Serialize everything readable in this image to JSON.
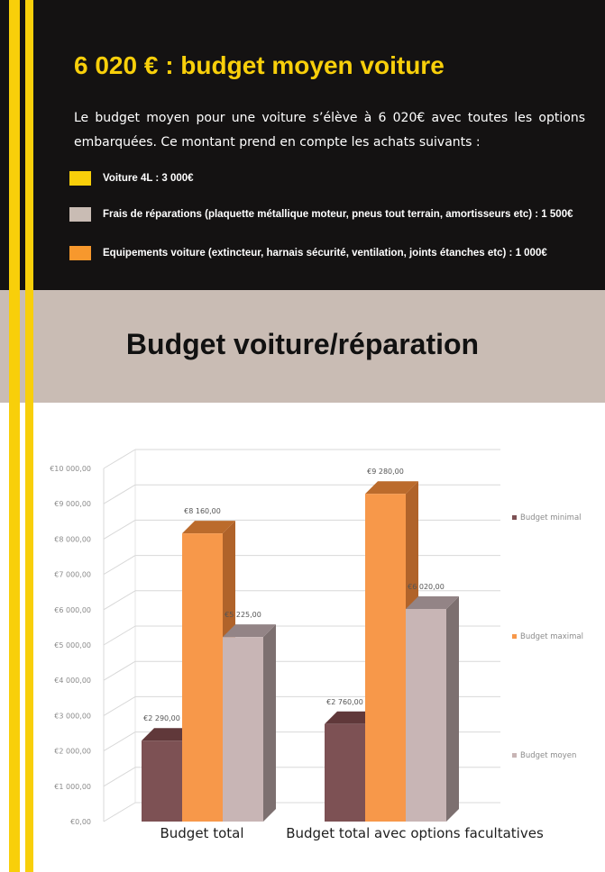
{
  "header": {
    "title": "6 020 € : budget moyen voiture",
    "intro": "Le budget moyen pour une voiture s’élève à 6 020€ avec toutes les options embarquées. Ce montant prend en compte les achats suivants :",
    "items": [
      {
        "label": "Voiture 4L : 3 000€",
        "color": "#f8cf0a"
      },
      {
        "label": "Frais de réparations (plaquette métallique moteur, pneus tout terrain, amortisseurs etc) : 1 500€",
        "color": "#c9bcb4"
      },
      {
        "label": "Equipements voiture (extincteur, harnais sécurité, ventilation, joints étanches etc) : 1 000€",
        "color": "#f7982d"
      }
    ]
  },
  "section": {
    "title": "Budget voiture/réparation"
  },
  "colors": {
    "background_dark": "#141212",
    "accent_yellow": "#f8cf0a",
    "band_beige": "#c9bcb4"
  },
  "chart_data": {
    "type": "bar",
    "style": "3d-clustered-column",
    "categories": [
      "Budget total",
      "Budget total avec options facultatives"
    ],
    "series": [
      {
        "name": "Budget minimal",
        "values": [
          2290,
          2760
        ],
        "color": "#7d5154",
        "side": "#673f42",
        "top": "#60383a"
      },
      {
        "name": "Budget maximal",
        "values": [
          8160,
          9280
        ],
        "color": "#f7984a",
        "side": "#b0632a",
        "top": "#bb6b2c"
      },
      {
        "name": "Budget moyen",
        "values": [
          5225,
          6020
        ],
        "color": "#c8b5b5",
        "side": "#7d7070",
        "top": "#938486"
      }
    ],
    "data_labels": [
      [
        "€2 290,00",
        "€8 160,00",
        "€5 225,00"
      ],
      [
        "€2 760,00",
        "€9 280,00",
        "€6 020,00"
      ]
    ],
    "ylim": [
      0,
      10000
    ],
    "yticks": [
      0,
      1000,
      2000,
      3000,
      4000,
      5000,
      6000,
      7000,
      8000,
      9000,
      10000
    ],
    "ytick_labels": [
      "€0,00",
      "€1 000,00",
      "€2 000,00",
      "€3 000,00",
      "€4 000,00",
      "€5 000,00",
      "€6 000,00",
      "€7 000,00",
      "€8 000,00",
      "€9 000,00",
      "€10 000,00"
    ],
    "grid": true,
    "legend_position": "right",
    "title": "",
    "xlabel": "",
    "ylabel": ""
  }
}
